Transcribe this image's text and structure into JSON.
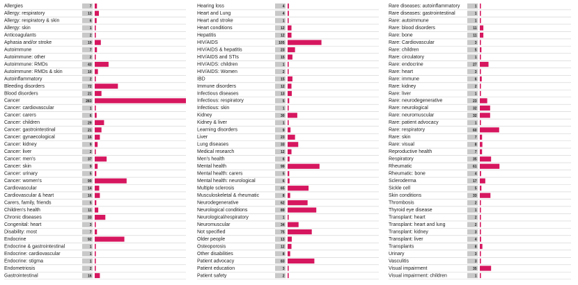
{
  "chart_data": {
    "type": "bar",
    "orientation": "horizontal",
    "layout": "three columns of horizontal bars",
    "bar_color": "#d6175f",
    "value_box_color": "#c8c8c8",
    "xlim": [
      0,
      283
    ],
    "grid": false,
    "columns": [
      {
        "categories": [
          "Allergies",
          "Allergy: respiratory",
          "Allergy: respiratory & skin",
          "Allergy: skin",
          "Anticoagulants",
          "Aphasia and/or stroke",
          "Autoimmune",
          "Autoimmune: other",
          "Autoimmune: RMDs",
          "Autoimmune: RMDs & skin",
          "Autoinflammatory",
          "Bleeding disorders",
          "Blood disorders",
          "Cancer",
          "Cancer: cardiovascular",
          "Cancer: carers",
          "Cancer: children",
          "Cancer: gastrointestinal",
          "Cancer: gynaecological",
          "Cancer: kidney",
          "Cancer: liver",
          "Cancer: men's",
          "Cancer: skin",
          "Cancer: urinary",
          "Cancer: women's",
          "Cardiovascular",
          "Cardiovascular & heart",
          "Carers, family, friends",
          "Children's health",
          "Chronic diseases",
          "Congenital: heart",
          "Disability: most",
          "Endocrine",
          "Endocrine & gastrointestinal",
          "Endocrine: cardiovascular",
          "Endocrine: stigma",
          "Endometriosis",
          "Gastrointestinal"
        ],
        "values": [
          7,
          13,
          6,
          1,
          2,
          19,
          7,
          2,
          43,
          10,
          2,
          72,
          21,
          283,
          1,
          6,
          29,
          21,
          16,
          9,
          2,
          37,
          9,
          5,
          99,
          14,
          16,
          5,
          11,
          33,
          3,
          7,
          92,
          1,
          1,
          1,
          2,
          16
        ]
      },
      {
        "categories": [
          "Hearing loss",
          "Heart and Lung",
          "Heart and stroke",
          "Heart conditions",
          "Hepatitis",
          "HIV/AIDS",
          "HIV/AIDS & hepatitis",
          "HIV/AIDS and STIs",
          "HIV/AIDS: children",
          "HIV/AIDS: Women",
          "IBD",
          "Immune disorders",
          "Infectious diseases",
          "Infectious: respiratory",
          "Infectious: skin",
          "Kidney",
          "Kidney & liver",
          "Learning disorders",
          "Liver",
          "Lung diseases",
          "Medical research",
          "Men's health",
          "Mental health",
          "Mental health: carers",
          "Mental health: neurological",
          "Multiple sclerosis",
          "Musculoskeletal & rheumatic",
          "Neurodegenerative",
          "Neurological conditions",
          "Neurological/respiratory",
          "Neuromuscular",
          "Not specified",
          "Older people",
          "Osteoporosis",
          "Other disabilities",
          "Patient advocacy",
          "Patient education",
          "Patient safety"
        ],
        "values": [
          4,
          4,
          1,
          12,
          12,
          105,
          23,
          15,
          1,
          2,
          15,
          12,
          13,
          5,
          1,
          30,
          1,
          9,
          23,
          33,
          12,
          6,
          99,
          5,
          6,
          65,
          8,
          62,
          89,
          1,
          34,
          75,
          13,
          12,
          8,
          83,
          3,
          2
        ]
      },
      {
        "categories": [
          "Rare diseases: autoinflammatory",
          "Rare diseases: gastrointestinal",
          "Rare: autoimmune",
          "Rare: blood disorders",
          "Rare: bone",
          "Rare: Cardiovascular",
          "Rare: children",
          "Rare: circulatory",
          "Rare: endocrine",
          "Rare: heart",
          "Rare: immune",
          "Rare: kidney",
          "Rare: liver",
          "Rare: neurodegenerative",
          "Rare: neurological",
          "Rare: neuromuscular",
          "Rare: patient advocacy",
          "Rare: respiratory",
          "Rare: skin",
          "Rare: visual",
          "Reproductive health",
          "Respiratory",
          "Rheumatic",
          "Rheumatic: bone",
          "Scleroderma",
          "Sickle cell",
          "Skin conditions",
          "Thrombosis",
          "Thyroid eye disease",
          "Transplant: heart",
          "Transplant: heart and lung",
          "Transplant: kidney",
          "Transplant: liver",
          "Transplants",
          "Urinary",
          "Vasculitis",
          "Visual impairment",
          "Visual impairment: children"
        ],
        "values": [
          1,
          1,
          1,
          11,
          11,
          3,
          5,
          1,
          27,
          3,
          6,
          2,
          1,
          23,
          32,
          32,
          1,
          60,
          7,
          8,
          7,
          35,
          61,
          4,
          17,
          5,
          33,
          2,
          1,
          2,
          2,
          3,
          4,
          8,
          3,
          3,
          35,
          1
        ]
      }
    ]
  }
}
